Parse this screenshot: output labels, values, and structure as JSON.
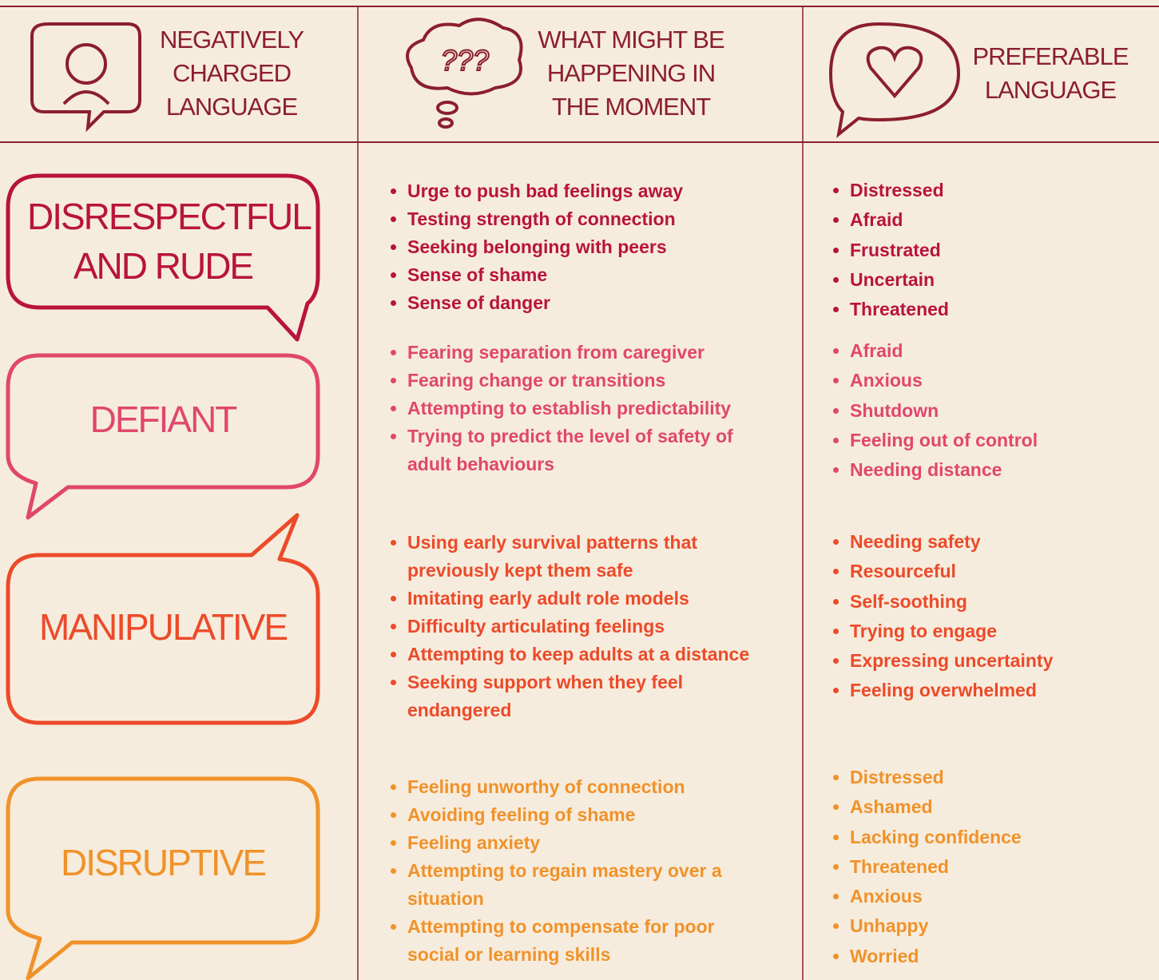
{
  "header": {
    "columns": [
      {
        "title": "NEGATIVELY CHARGED LANGUAGE"
      },
      {
        "title": "WHAT MIGHT BE HAPPENING IN THE MOMENT"
      },
      {
        "title": "PREFERABLE LANGUAGE"
      }
    ]
  },
  "rows": [
    {
      "label": "DISRESPECTFUL AND RUDE",
      "color": "#b8143c",
      "happening": [
        "Urge to push bad feelings away",
        "Testing strength of connection",
        "Seeking belonging with peers",
        "Sense of shame",
        "Sense of danger"
      ],
      "preferable": [
        "Distressed",
        "Afraid",
        "Frustrated",
        "Uncertain",
        "Threatened"
      ]
    },
    {
      "label": "DEFIANT",
      "color": "#e0476b",
      "happening": [
        "Fearing separation from caregiver",
        "Fearing change or transitions",
        "Attempting to establish predictability",
        "Trying to predict the level of safety of adult behaviours"
      ],
      "preferable": [
        "Afraid",
        "Anxious",
        "Shutdown",
        "Feeling out of control",
        "Needing distance"
      ]
    },
    {
      "label": "MANIPULATIVE",
      "color": "#ec4a2a",
      "happening": [
        "Using early survival patterns that previously kept them safe",
        "Imitating early adult role models",
        "Difficulty articulating feelings",
        "Attempting to keep adults at a distance",
        "Seeking support when they feel endangered"
      ],
      "preferable": [
        "Needing safety",
        "Resourceful",
        "Self-soothing",
        "Trying to engage",
        "Expressing uncertainty",
        "Feeling overwhelmed"
      ]
    },
    {
      "label": "DISRUPTIVE",
      "color": "#f0922a",
      "happening": [
        "Feeling unworthy of connection",
        "Avoiding feeling of shame",
        "Feeling anxiety",
        "Attempting to regain mastery over a situation",
        "Attempting to compensate for poor social or learning skills"
      ],
      "preferable": [
        "Distressed",
        "Ashamed",
        "Lacking confidence",
        "Threatened",
        "Anxious",
        "Unhappy",
        "Worried"
      ]
    }
  ]
}
